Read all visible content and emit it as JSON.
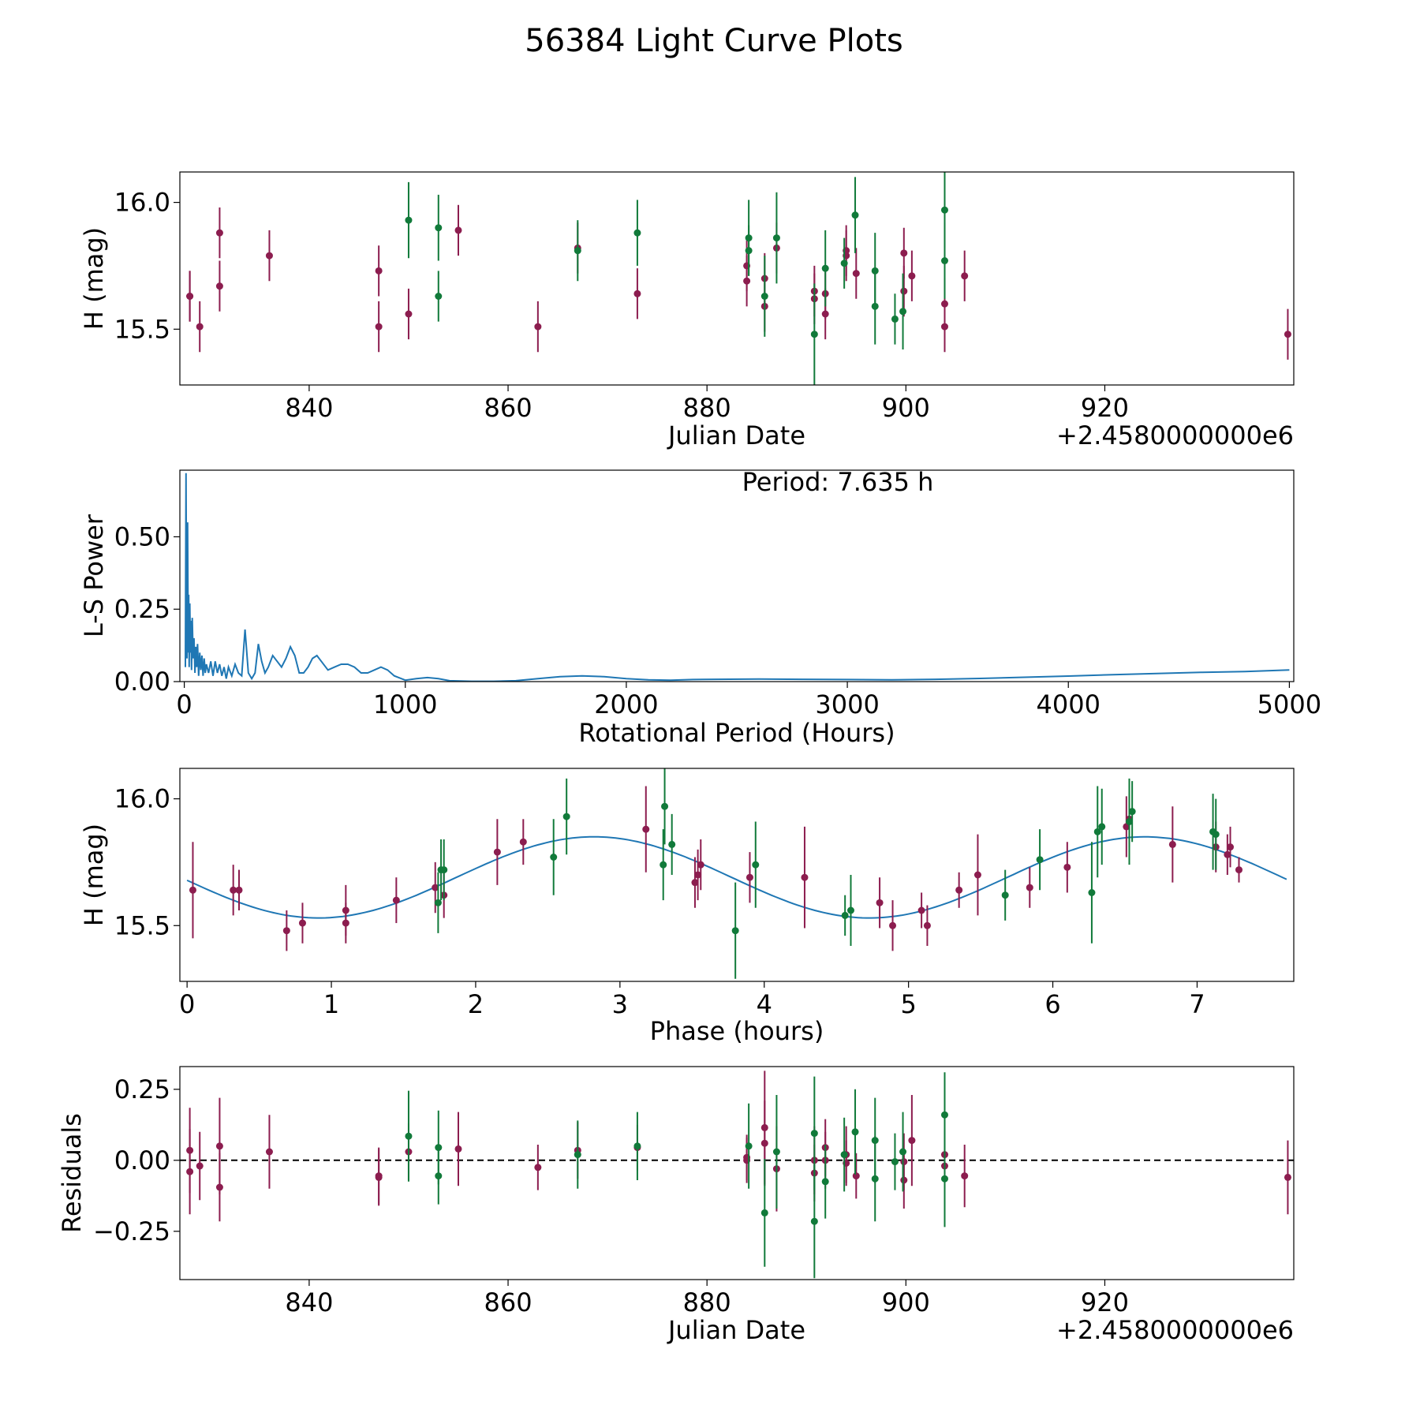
{
  "figure_title": "56384 Light Curve Plots",
  "colors": {
    "magenta": "#8c1d4f",
    "green": "#117a3a",
    "curve": "#1f77b4"
  },
  "chart_data": [
    {
      "type": "scatter",
      "id": "lc",
      "xlabel": "Julian Date",
      "ylabel": "H (mag)",
      "offset_text": "+2.4580000000e6",
      "xlim": [
        827,
        939
      ],
      "ylim": [
        15.28,
        16.12
      ],
      "xticks": [
        840,
        860,
        880,
        900,
        920
      ],
      "xtick_labels": [
        "840",
        "860",
        "880",
        "900",
        "920"
      ],
      "yticks": [
        15.5,
        16.0
      ],
      "ytick_labels": [
        "15.5",
        "16.0"
      ],
      "series": [
        {
          "name": "magenta",
          "x": [
            828.0,
            828.0,
            829.0,
            831.0,
            831.0,
            836.0,
            847.0,
            847.0,
            850.0,
            855.0,
            863.0,
            867.0,
            873.0,
            884.0,
            884.0,
            885.8,
            885.8,
            887.0,
            890.8,
            890.8,
            891.9,
            891.9,
            894.0,
            894.0,
            895.0,
            899.8,
            899.8,
            900.6,
            903.9,
            903.9,
            905.9,
            938.4
          ],
          "y": [
            15.63,
            15.63,
            15.51,
            15.67,
            15.88,
            15.79,
            15.51,
            15.73,
            15.56,
            15.89,
            15.51,
            15.82,
            15.64,
            15.69,
            15.75,
            15.59,
            15.7,
            15.82,
            15.62,
            15.65,
            15.64,
            15.56,
            15.79,
            15.81,
            15.72,
            15.65,
            15.8,
            15.71,
            15.51,
            15.6,
            15.71,
            15.48
          ],
          "err": [
            0.1,
            0.1,
            0.1,
            0.1,
            0.1,
            0.1,
            0.1,
            0.1,
            0.1,
            0.1,
            0.1,
            0.1,
            0.1,
            0.1,
            0.1,
            0.1,
            0.1,
            0.1,
            0.1,
            0.1,
            0.1,
            0.1,
            0.1,
            0.1,
            0.1,
            0.1,
            0.1,
            0.1,
            0.1,
            0.1,
            0.1,
            0.1
          ]
        },
        {
          "name": "green",
          "x": [
            850.0,
            853.0,
            853.0,
            867.0,
            873.0,
            884.2,
            884.2,
            885.8,
            887.0,
            890.8,
            891.9,
            893.8,
            894.9,
            896.9,
            896.9,
            898.9,
            899.7,
            903.9,
            903.9
          ],
          "y": [
            15.93,
            15.9,
            15.63,
            15.81,
            15.88,
            15.86,
            15.81,
            15.63,
            15.86,
            15.48,
            15.74,
            15.76,
            15.95,
            15.73,
            15.59,
            15.54,
            15.57,
            15.97,
            15.77
          ],
          "err": [
            0.15,
            0.13,
            0.1,
            0.12,
            0.13,
            0.15,
            0.1,
            0.16,
            0.18,
            0.2,
            0.15,
            0.1,
            0.15,
            0.15,
            0.15,
            0.1,
            0.15,
            0.15,
            0.15
          ]
        }
      ]
    },
    {
      "type": "line",
      "id": "ls",
      "xlabel": "Rotational Period (Hours)",
      "ylabel": "L-S Power",
      "annotation": "Period: 7.635 h",
      "xlim": [
        -20,
        5020
      ],
      "ylim": [
        0,
        0.73
      ],
      "xticks": [
        0,
        1000,
        2000,
        3000,
        4000,
        5000
      ],
      "xtick_labels": [
        "0",
        "1000",
        "2000",
        "3000",
        "4000",
        "5000"
      ],
      "yticks": [
        0,
        0.25,
        0.5
      ],
      "ytick_labels": [
        "0.00",
        "0.25",
        "0.50"
      ],
      "x": [
        5,
        8,
        10,
        12,
        15,
        18,
        20,
        22,
        25,
        28,
        30,
        33,
        36,
        40,
        44,
        48,
        52,
        56,
        60,
        65,
        70,
        75,
        80,
        85,
        90,
        95,
        100,
        110,
        120,
        130,
        140,
        150,
        160,
        170,
        180,
        190,
        200,
        215,
        230,
        245,
        260,
        275,
        290,
        305,
        320,
        335,
        350,
        365,
        380,
        400,
        420,
        440,
        460,
        480,
        500,
        520,
        540,
        560,
        580,
        600,
        620,
        650,
        680,
        710,
        740,
        770,
        800,
        830,
        860,
        890,
        920,
        950,
        1000,
        1050,
        1100,
        1150,
        1200,
        1250,
        1300,
        1400,
        1500,
        1600,
        1700,
        1800,
        1900,
        2000,
        2100,
        2200,
        2300,
        2400,
        2600,
        2800,
        3000,
        3200,
        3400,
        3600,
        3800,
        4000,
        4200,
        4400,
        4600,
        4800,
        5000
      ],
      "y": [
        0.05,
        0.72,
        0.2,
        0.08,
        0.55,
        0.1,
        0.3,
        0.05,
        0.27,
        0.1,
        0.21,
        0.04,
        0.22,
        0.08,
        0.15,
        0.03,
        0.12,
        0.05,
        0.13,
        0.02,
        0.1,
        0.04,
        0.09,
        0.02,
        0.08,
        0.03,
        0.06,
        0.03,
        0.07,
        0.02,
        0.07,
        0.03,
        0.06,
        0.02,
        0.05,
        0.01,
        0.05,
        0.02,
        0.06,
        0.03,
        0.02,
        0.18,
        0.03,
        0.01,
        0.03,
        0.13,
        0.07,
        0.03,
        0.05,
        0.09,
        0.07,
        0.05,
        0.08,
        0.12,
        0.09,
        0.03,
        0.03,
        0.05,
        0.08,
        0.09,
        0.07,
        0.04,
        0.05,
        0.06,
        0.06,
        0.05,
        0.03,
        0.03,
        0.04,
        0.05,
        0.04,
        0.02,
        0.005,
        0.01,
        0.014,
        0.01,
        0.003,
        0.002,
        0.001,
        0.001,
        0.003,
        0.01,
        0.017,
        0.02,
        0.017,
        0.01,
        0.006,
        0.005,
        0.007,
        0.008,
        0.009,
        0.008,
        0.007,
        0.006,
        0.008,
        0.011,
        0.015,
        0.019,
        0.024,
        0.028,
        0.032,
        0.035,
        0.04
      ]
    },
    {
      "type": "scatter",
      "id": "phase",
      "xlabel": "Phase (hours)",
      "ylabel": "H (mag)",
      "xlim": [
        -0.05,
        7.67
      ],
      "ylim": [
        15.28,
        16.12
      ],
      "xticks": [
        0,
        1,
        2,
        3,
        4,
        5,
        6,
        7
      ],
      "xtick_labels": [
        "0",
        "1",
        "2",
        "3",
        "4",
        "5",
        "6",
        "7"
      ],
      "yticks": [
        15.5,
        16.0
      ],
      "ytick_labels": [
        "15.5",
        "16.0"
      ],
      "model": {
        "mean": 15.69,
        "amp": 0.16,
        "period_hours": 7.635,
        "peak_phase": 2.82
      },
      "series": [
        {
          "name": "magenta",
          "x": [
            0.04,
            0.32,
            0.36,
            0.69,
            0.8,
            1.1,
            1.1,
            1.45,
            1.72,
            1.78,
            2.15,
            2.33,
            3.18,
            3.52,
            3.54,
            3.56,
            3.9,
            4.28,
            4.8,
            4.89,
            5.09,
            5.13,
            5.35,
            5.48,
            5.84,
            6.1,
            6.51,
            6.53,
            6.53,
            6.83,
            7.13,
            7.21,
            7.23,
            7.29
          ],
          "y": [
            15.64,
            15.64,
            15.64,
            15.48,
            15.51,
            15.51,
            15.56,
            15.6,
            15.65,
            15.62,
            15.79,
            15.83,
            15.88,
            15.67,
            15.7,
            15.74,
            15.69,
            15.69,
            15.59,
            15.5,
            15.56,
            15.5,
            15.64,
            15.7,
            15.65,
            15.73,
            15.89,
            15.91,
            15.92,
            15.82,
            15.81,
            15.78,
            15.81,
            15.72
          ],
          "err": [
            0.19,
            0.1,
            0.08,
            0.08,
            0.08,
            0.08,
            0.1,
            0.09,
            0.1,
            0.09,
            0.13,
            0.09,
            0.17,
            0.1,
            0.1,
            0.1,
            0.1,
            0.2,
            0.1,
            0.1,
            0.07,
            0.08,
            0.07,
            0.16,
            0.08,
            0.1,
            0.12,
            0.1,
            0.1,
            0.15,
            0.1,
            0.08,
            0.08,
            0.05
          ]
        },
        {
          "name": "green",
          "x": [
            1.74,
            1.76,
            1.78,
            2.54,
            2.63,
            3.3,
            3.31,
            3.36,
            3.8,
            3.94,
            4.56,
            4.6,
            5.67,
            5.91,
            6.27,
            6.31,
            6.34,
            6.53,
            6.55,
            7.11,
            7.13
          ],
          "y": [
            15.59,
            15.72,
            15.72,
            15.77,
            15.93,
            15.74,
            15.97,
            15.82,
            15.48,
            15.74,
            15.54,
            15.56,
            15.62,
            15.76,
            15.63,
            15.87,
            15.89,
            15.91,
            15.95,
            15.87,
            15.86
          ],
          "err": [
            0.12,
            0.12,
            0.12,
            0.15,
            0.15,
            0.14,
            0.15,
            0.12,
            0.19,
            0.17,
            0.08,
            0.14,
            0.1,
            0.12,
            0.2,
            0.18,
            0.15,
            0.17,
            0.12,
            0.15,
            0.14
          ]
        }
      ]
    },
    {
      "type": "scatter",
      "id": "res",
      "xlabel": "Julian Date",
      "ylabel": "Residuals",
      "offset_text": "+2.4580000000e6",
      "xlim": [
        827,
        939
      ],
      "ylim": [
        -0.42,
        0.33
      ],
      "xticks": [
        840,
        860,
        880,
        900,
        920
      ],
      "xtick_labels": [
        "840",
        "860",
        "880",
        "900",
        "920"
      ],
      "yticks": [
        -0.25,
        0,
        0.25
      ],
      "ytick_labels": [
        "−0.25",
        "0.00",
        "0.25"
      ],
      "hline": 0,
      "series": [
        {
          "name": "magenta",
          "x": [
            828.0,
            828.0,
            829.0,
            831.0,
            831.0,
            836.0,
            847.0,
            847.0,
            850.0,
            855.0,
            863.0,
            867.0,
            873.0,
            884.0,
            884.0,
            885.8,
            885.8,
            887.0,
            890.8,
            890.8,
            891.9,
            891.9,
            894.0,
            894.0,
            895.0,
            899.8,
            899.8,
            900.6,
            903.9,
            903.9,
            905.9,
            938.4
          ],
          "y": [
            0.035,
            -0.04,
            -0.02,
            0.05,
            -0.095,
            0.03,
            -0.06,
            -0.055,
            0.03,
            0.04,
            -0.025,
            0.035,
            0.045,
            0.0,
            0.01,
            0.115,
            0.06,
            -0.03,
            0.0,
            -0.045,
            0.0,
            0.045,
            0.02,
            -0.01,
            -0.055,
            -0.07,
            -0.005,
            0.07,
            0.02,
            -0.02,
            -0.055,
            -0.06
          ],
          "err": [
            0.15,
            0.15,
            0.12,
            0.17,
            0.12,
            0.13,
            0.1,
            0.1,
            0.1,
            0.13,
            0.08,
            0.1,
            0.08,
            0.08,
            0.08,
            0.2,
            0.15,
            0.15,
            0.12,
            0.1,
            0.1,
            0.1,
            0.1,
            0.08,
            0.08,
            0.1,
            0.1,
            0.16,
            0.09,
            0.08,
            0.11,
            0.13
          ]
        },
        {
          "name": "green",
          "x": [
            850.0,
            853.0,
            853.0,
            867.0,
            873.0,
            884.2,
            885.8,
            887.0,
            890.8,
            890.8,
            891.9,
            893.8,
            894.9,
            896.9,
            896.9,
            898.9,
            899.7,
            903.9,
            903.9
          ],
          "y": [
            0.085,
            0.045,
            -0.055,
            0.02,
            0.05,
            0.05,
            -0.185,
            0.03,
            0.095,
            -0.215,
            -0.075,
            0.02,
            0.1,
            0.07,
            -0.065,
            -0.005,
            0.03,
            0.16,
            -0.065
          ],
          "err": [
            0.16,
            0.13,
            0.1,
            0.12,
            0.12,
            0.15,
            0.19,
            0.2,
            0.2,
            0.2,
            0.13,
            0.13,
            0.15,
            0.15,
            0.15,
            0.1,
            0.14,
            0.15,
            0.17
          ]
        }
      ]
    }
  ]
}
